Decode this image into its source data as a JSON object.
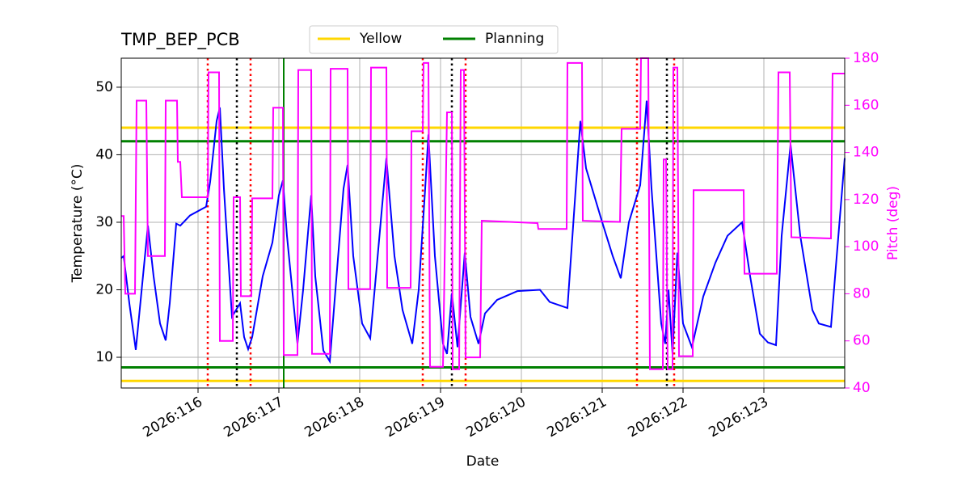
{
  "chart_data": {
    "type": "line",
    "title": "TMP_BEP_PCB",
    "xlabel": "Date",
    "ylabel": "Temperature (°C)",
    "y2label": "Pitch (deg)",
    "y2color": "#ff00ff",
    "xlim": [
      115.05,
      124.0
    ],
    "xticks": [
      {
        "value": 116,
        "label": "2026:116"
      },
      {
        "value": 117,
        "label": "2026:117"
      },
      {
        "value": 118,
        "label": "2026:118"
      },
      {
        "value": 119,
        "label": "2026:119"
      },
      {
        "value": 120,
        "label": "2026:120"
      },
      {
        "value": 121,
        "label": "2026:121"
      },
      {
        "value": 122,
        "label": "2026:122"
      },
      {
        "value": 123,
        "label": "2026:123"
      }
    ],
    "ylim": [
      5.45,
      54.3
    ],
    "yticks": [
      10,
      20,
      30,
      40,
      50
    ],
    "y2lim": [
      40,
      180
    ],
    "y2ticks": [
      40,
      60,
      80,
      100,
      120,
      140,
      160,
      180
    ],
    "grid": true,
    "legend": "upper center",
    "hlines": [
      {
        "name": "Yellow",
        "color": "#ffd700",
        "values": [
          6.5,
          44
        ]
      },
      {
        "name": "Planning",
        "color": "#008000",
        "values": [
          8.5,
          42
        ]
      }
    ],
    "vlines": [
      {
        "color": "#ff0000",
        "style": "dotted",
        "values": [
          116.12,
          116.65,
          118.78,
          119.31,
          121.43,
          121.89
        ]
      },
      {
        "color": "#000000",
        "style": "dotted",
        "values": [
          116.48,
          119.14,
          121.8
        ]
      },
      {
        "color": "#008000",
        "style": "solid",
        "values": [
          117.06
        ]
      }
    ],
    "series": [
      {
        "color": "#0000ff",
        "axis": "y",
        "x": [
          115.05,
          115.08,
          115.15,
          115.23,
          115.27,
          115.38,
          115.45,
          115.53,
          115.6,
          115.65,
          115.73,
          115.78,
          115.9,
          116.1,
          116.15,
          116.23,
          116.27,
          116.32,
          116.42,
          116.52,
          116.57,
          116.62,
          116.67,
          116.8,
          116.92,
          117.0,
          117.05,
          117.1,
          117.23,
          117.3,
          117.4,
          117.45,
          117.55,
          117.63,
          117.7,
          117.8,
          117.85,
          117.92,
          118.03,
          118.13,
          118.2,
          118.33,
          118.43,
          118.53,
          118.65,
          118.73,
          118.81,
          118.85,
          118.93,
          119.03,
          119.08,
          119.14,
          119.21,
          119.3,
          119.37,
          119.47,
          119.55,
          119.7,
          119.95,
          120.23,
          120.35,
          120.57,
          120.73,
          120.8,
          121.0,
          121.13,
          121.23,
          121.33,
          121.47,
          121.55,
          121.61,
          121.73,
          121.78,
          121.82,
          121.87,
          121.93,
          122.0,
          122.11,
          122.25,
          122.4,
          122.55,
          122.73,
          122.83,
          122.95,
          123.05,
          123.15,
          123.22,
          123.33,
          123.45,
          123.6,
          123.68,
          123.83,
          124.0
        ],
        "values": [
          24.7,
          25.0,
          18,
          11.1,
          16,
          29.5,
          22,
          15,
          12.5,
          18,
          29.8,
          29.5,
          31,
          32.3,
          36,
          45,
          47,
          35,
          16,
          18,
          13,
          11.2,
          13,
          22,
          27,
          34,
          36.2,
          28,
          12,
          20,
          34,
          22,
          11,
          9.4,
          20,
          35,
          38.5,
          25,
          15,
          12.8,
          22,
          39.5,
          25,
          17,
          12,
          20,
          35,
          43,
          25,
          12,
          10.5,
          19.5,
          11.5,
          25.5,
          16,
          12,
          16.5,
          18.5,
          19.8,
          20,
          18.2,
          17.3,
          45,
          38,
          30,
          25,
          21.7,
          30,
          35.5,
          48,
          35,
          15,
          12,
          20,
          10.5,
          25.5,
          15,
          11.5,
          19,
          24,
          28,
          30,
          22,
          13.5,
          12.2,
          11.8,
          28,
          41.5,
          28,
          17,
          15,
          14.5,
          39.5
        ]
      },
      {
        "color": "#ff00ff",
        "axis": "y2",
        "x": [
          115.05,
          115.08,
          115.1,
          115.22,
          115.24,
          115.36,
          115.38,
          115.59,
          115.6,
          115.74,
          115.75,
          115.78,
          115.8,
          116.12,
          116.13,
          116.26,
          116.27,
          116.43,
          116.44,
          116.52,
          116.53,
          116.66,
          116.67,
          116.92,
          116.93,
          117.05,
          117.06,
          117.23,
          117.24,
          117.4,
          117.41,
          117.63,
          117.64,
          117.85,
          117.86,
          118.13,
          118.14,
          118.33,
          118.34,
          118.63,
          118.64,
          118.78,
          118.79,
          118.85,
          118.87,
          119.03,
          119.08,
          119.14,
          119.15,
          119.23,
          119.25,
          119.29,
          119.31,
          119.49,
          119.51,
          120.2,
          120.21,
          120.56,
          120.57,
          120.75,
          120.76,
          121.22,
          121.24,
          121.47,
          121.48,
          121.57,
          121.59,
          121.75,
          121.76,
          121.79,
          121.81,
          121.87,
          121.88,
          121.93,
          121.95,
          122.12,
          122.13,
          122.75,
          122.76,
          123.16,
          123.18,
          123.32,
          123.34,
          123.83,
          123.85,
          124.0
        ],
        "values": [
          113,
          113,
          80,
          80,
          162,
          162,
          96,
          96,
          162,
          162,
          136,
          136,
          121,
          121,
          174,
          174,
          60,
          60,
          121,
          121,
          79,
          79,
          120.5,
          120.5,
          159,
          159,
          54,
          54,
          175,
          175,
          54.5,
          54.5,
          175.5,
          175.5,
          82,
          82,
          176,
          176,
          82.5,
          82.5,
          149,
          149,
          178,
          178,
          49,
          49,
          157,
          157,
          48,
          48,
          175,
          175,
          53,
          53,
          111,
          110,
          107.5,
          107.5,
          178,
          178,
          111,
          110.5,
          150,
          150,
          180,
          180,
          48,
          48,
          137,
          137,
          48,
          48,
          176,
          176,
          53.5,
          53.5,
          124,
          124,
          88.5,
          88.5,
          174,
          174,
          104,
          103.5,
          173.5,
          173.5
        ]
      }
    ]
  }
}
